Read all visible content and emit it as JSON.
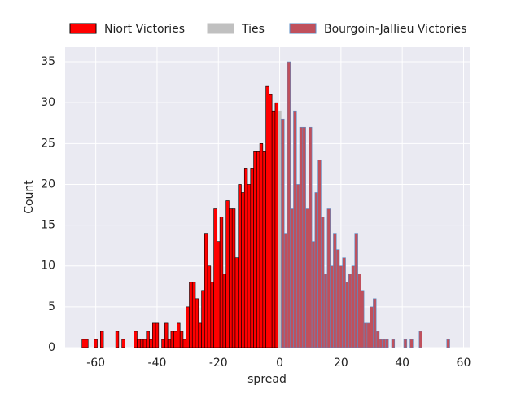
{
  "chart_data": {
    "type": "histogram",
    "x_label": "spread",
    "y_label": "Count",
    "xlim": [
      -70,
      62
    ],
    "ylim": [
      0,
      36.8
    ],
    "xticks": [
      -60,
      -40,
      -20,
      0,
      20,
      40,
      60
    ],
    "yticks": [
      0,
      5,
      10,
      15,
      20,
      25,
      30,
      35
    ],
    "grid": true,
    "legend": "top",
    "series": [
      {
        "name": "Niort Victories",
        "color": "#ff0000",
        "edgecolor": "#000000",
        "bins": [
          -64.5,
          -63.5,
          -62.5,
          -61.5,
          -60.5,
          -59.5,
          -58.5,
          -57.5,
          -56.5,
          -55.5,
          -54.5,
          -53.5,
          -52.5,
          -51.5,
          -50.5,
          -49.5,
          -48.5,
          -47.5,
          -46.5,
          -45.5,
          -44.5,
          -43.5,
          -42.5,
          -41.5,
          -40.5,
          -39.5,
          -38.5,
          -37.5,
          -36.5,
          -35.5,
          -34.5,
          -33.5,
          -32.5,
          -31.5,
          -30.5,
          -29.5,
          -28.5,
          -27.5,
          -26.5,
          -25.5,
          -24.5,
          -23.5,
          -22.5,
          -21.5,
          -20.5,
          -19.5,
          -18.5,
          -17.5,
          -16.5,
          -15.5,
          -14.5,
          -13.5,
          -12.5,
          -11.5,
          -10.5,
          -9.5,
          -8.5,
          -7.5,
          -6.5,
          -5.5,
          -4.5,
          -3.5,
          -2.5,
          -1.5,
          -0.5
        ],
        "values": [
          1,
          1,
          0,
          0,
          1,
          0,
          2,
          0,
          0,
          0,
          0,
          2,
          0,
          1,
          0,
          0,
          0,
          2,
          1,
          1,
          1,
          2,
          1,
          3,
          3,
          0,
          1,
          3,
          1,
          2,
          2,
          3,
          2,
          1,
          5,
          8,
          8,
          6,
          3,
          7,
          14,
          10,
          8,
          17,
          13,
          16,
          9,
          18,
          17,
          17,
          11,
          20,
          19,
          22,
          20,
          22,
          24,
          24,
          25,
          24,
          32,
          31,
          29,
          30
        ]
      },
      {
        "name": "Ties",
        "color": "#c0c0c0",
        "edgecolor": "#c0c0c0",
        "bins": [
          -0.5,
          0.5
        ],
        "values": [
          29
        ]
      },
      {
        "name": "Bourgoin-Jallieu Victories",
        "color": "#c0505c",
        "edgecolor": "#5a8cc4",
        "bins": [
          0.5,
          1.5,
          2.5,
          3.5,
          4.5,
          5.5,
          6.5,
          7.5,
          8.5,
          9.5,
          10.5,
          11.5,
          12.5,
          13.5,
          14.5,
          15.5,
          16.5,
          17.5,
          18.5,
          19.5,
          20.5,
          21.5,
          22.5,
          23.5,
          24.5,
          25.5,
          26.5,
          27.5,
          28.5,
          29.5,
          30.5,
          31.5,
          32.5,
          33.5,
          34.5,
          35.5,
          36.5,
          37.5,
          38.5,
          39.5,
          40.5,
          41.5,
          42.5,
          43.5,
          44.5,
          45.5,
          46.5,
          47.5,
          48.5,
          49.5,
          50.5,
          51.5,
          52.5,
          53.5,
          54.5,
          55.5
        ],
        "values": [
          28,
          14,
          35,
          17,
          29,
          20,
          27,
          27,
          17,
          27,
          13,
          19,
          23,
          16,
          9,
          17,
          10,
          14,
          12,
          10,
          11,
          8,
          9,
          10,
          14,
          9,
          7,
          3,
          3,
          5,
          6,
          2,
          1,
          1,
          1,
          0,
          1,
          0,
          0,
          0,
          1,
          0,
          1,
          0,
          0,
          2,
          0,
          0,
          0,
          0,
          0,
          0,
          0,
          0,
          1
        ]
      }
    ]
  }
}
